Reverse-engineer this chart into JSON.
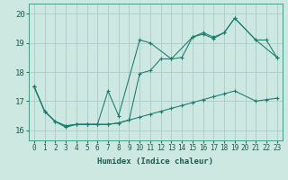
{
  "bg_color": "#cce8e0",
  "grid_color": "#aacccc",
  "line_color": "#1a7a6e",
  "xlabel": "Humidex (Indice chaleur)",
  "ylabel_ticks": [
    16,
    17,
    18,
    19,
    20
  ],
  "xtick_labels": [
    "0",
    "1",
    "2",
    "3",
    "4",
    "5",
    "6",
    "7",
    "8",
    "9",
    "10",
    "11",
    "12",
    "13",
    "14",
    "15",
    "16",
    "17",
    "18",
    "19",
    "20",
    "21",
    "22",
    "23"
  ],
  "xlim": [
    -0.5,
    23.5
  ],
  "ylim": [
    15.65,
    20.35
  ],
  "line1_x": [
    0,
    1,
    2,
    3,
    4,
    5,
    6,
    7,
    8,
    10,
    11,
    13,
    15,
    16,
    17,
    18,
    19,
    21,
    23
  ],
  "line1_y": [
    17.5,
    16.65,
    16.3,
    16.1,
    16.2,
    16.2,
    16.2,
    17.35,
    16.5,
    19.1,
    19.0,
    18.45,
    19.2,
    19.35,
    19.2,
    19.35,
    19.85,
    19.1,
    18.5
  ],
  "line2_x": [
    0,
    1,
    2,
    3,
    4,
    5,
    6,
    7,
    8,
    9,
    10,
    11,
    12,
    13,
    14,
    15,
    16,
    17,
    18,
    19,
    21,
    22,
    23
  ],
  "line2_y": [
    17.5,
    16.65,
    16.3,
    16.15,
    16.2,
    16.2,
    16.2,
    16.2,
    16.25,
    16.35,
    17.95,
    18.05,
    18.45,
    18.45,
    18.5,
    19.2,
    19.3,
    19.15,
    19.35,
    19.85,
    19.1,
    19.1,
    18.5
  ],
  "line3_x": [
    0,
    1,
    2,
    3,
    4,
    5,
    6,
    7,
    8,
    9,
    10,
    11,
    12,
    13,
    14,
    15,
    16,
    17,
    18,
    19,
    21,
    22,
    23
  ],
  "line3_y": [
    17.5,
    16.65,
    16.3,
    16.15,
    16.2,
    16.2,
    16.2,
    16.2,
    16.25,
    16.35,
    16.45,
    16.55,
    16.65,
    16.75,
    16.85,
    16.95,
    17.05,
    17.15,
    17.25,
    17.35,
    17.0,
    17.05,
    17.1
  ],
  "tick_fontsize": 5.5,
  "xlabel_fontsize": 6.5,
  "ytick_fontsize": 6.5
}
